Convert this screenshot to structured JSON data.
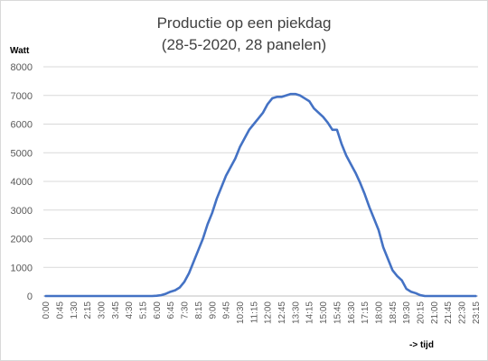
{
  "chart_data": {
    "type": "line",
    "title": "Productie op een piekdag",
    "subtitle": "(28-5-2020, 28 panelen)",
    "ylabel": "Watt",
    "xlabel": "-> tijd",
    "ylim": [
      0,
      8000
    ],
    "yticks": [
      "0",
      "1000",
      "2000",
      "3000",
      "4000",
      "5000",
      "6000",
      "7000",
      "8000"
    ],
    "x_interval_minutes": 15,
    "grid": "horizontal",
    "legend": "none",
    "series": [
      {
        "color": "#4472c4",
        "values": [
          0,
          0,
          0,
          0,
          0,
          0,
          0,
          0,
          0,
          0,
          0,
          0,
          0,
          0,
          0,
          0,
          0,
          0,
          0,
          0,
          0,
          0,
          0,
          0,
          10,
          30,
          80,
          150,
          200,
          300,
          500,
          800,
          1200,
          1600,
          2000,
          2500,
          2900,
          3400,
          3800,
          4200,
          4500,
          4800,
          5200,
          5500,
          5800,
          6000,
          6200,
          6400,
          6700,
          6900,
          6950,
          6950,
          7000,
          7050,
          7050,
          7000,
          6900,
          6800,
          6550,
          6400,
          6250,
          6050,
          5800,
          5800,
          5300,
          4900,
          4600,
          4300,
          3950,
          3550,
          3100,
          2700,
          2300,
          1700,
          1300,
          900,
          700,
          550,
          250,
          150,
          100,
          30,
          0,
          0,
          0,
          0,
          0,
          0,
          0,
          0,
          0,
          0,
          0,
          0
        ]
      }
    ]
  }
}
